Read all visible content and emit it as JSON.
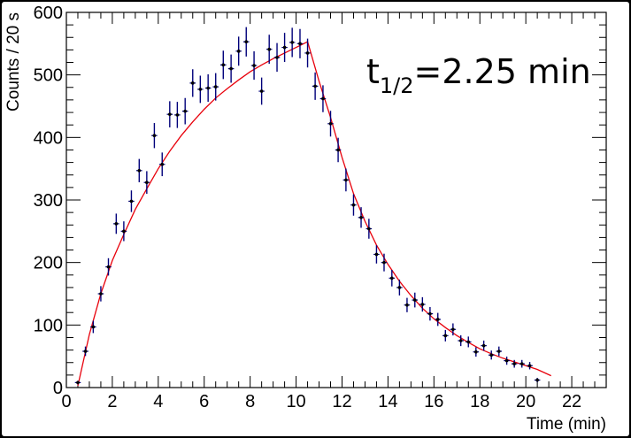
{
  "chart_data": {
    "type": "scatter",
    "title": "",
    "xlabel": "Time (min)",
    "ylabel": "Counts / 20 s",
    "xlim": [
      0,
      23.5
    ],
    "ylim": [
      0,
      600
    ],
    "x_ticks": [
      "0",
      "2",
      "4",
      "6",
      "8",
      "10",
      "12",
      "14",
      "16",
      "18",
      "20",
      "22"
    ],
    "y_ticks": [
      "0",
      "100",
      "200",
      "300",
      "400",
      "500",
      "600"
    ],
    "annotation": {
      "base": "t",
      "sub": "1/2",
      "rest": "=2.25 min"
    },
    "grid": false,
    "legend": "none",
    "colors": {
      "points": "#00007a",
      "fit": "#e8000b"
    },
    "series": [
      {
        "kind": "data-points-with-error-bars",
        "x": [
          0.5,
          0.83,
          1.17,
          1.5,
          1.83,
          2.17,
          2.5,
          2.83,
          3.17,
          3.5,
          3.83,
          4.17,
          4.5,
          4.83,
          5.17,
          5.5,
          5.83,
          6.17,
          6.5,
          6.83,
          7.17,
          7.5,
          7.83,
          8.17,
          8.5,
          8.83,
          9.17,
          9.5,
          9.83,
          10.17,
          10.5,
          10.83,
          11.17,
          11.5,
          11.83,
          12.17,
          12.5,
          12.83,
          13.17,
          13.5,
          13.83,
          14.17,
          14.5,
          14.83,
          15.17,
          15.5,
          15.83,
          16.17,
          16.5,
          16.83,
          17.17,
          17.5,
          17.83,
          18.17,
          18.5,
          18.83,
          19.17,
          19.5,
          19.83,
          20.17,
          20.5
        ],
        "y": [
          8,
          58,
          97,
          150,
          193,
          262,
          250,
          298,
          347,
          328,
          403,
          357,
          437,
          436,
          442,
          487,
          477,
          479,
          481,
          516,
          510,
          538,
          553,
          515,
          474,
          541,
          528,
          544,
          552,
          550,
          535,
          482,
          462,
          422,
          380,
          332,
          292,
          272,
          254,
          213,
          200,
          175,
          160,
          132,
          140,
          133,
          118,
          109,
          83,
          93,
          75,
          73,
          57,
          67,
          52,
          58,
          43,
          38,
          38,
          35,
          12
        ]
      },
      {
        "kind": "fit-curve",
        "x": [
          0.5,
          1,
          1.5,
          2,
          2.5,
          3,
          3.5,
          4,
          4.5,
          5,
          5.5,
          6,
          6.5,
          7,
          7.5,
          8,
          8.5,
          9,
          9.5,
          10,
          10.5,
          11,
          11.5,
          12,
          12.5,
          13,
          13.5,
          14,
          14.5,
          15,
          15.5,
          16,
          16.5,
          17,
          17.5,
          18,
          18.5,
          19,
          19.5,
          20,
          20.5,
          21.1
        ],
        "y": [
          3,
          85,
          150,
          203,
          245,
          285,
          318,
          350,
          378,
          403,
          425,
          445,
          463,
          478,
          492,
          505,
          516,
          526,
          535,
          544,
          553,
          490,
          432,
          368,
          310,
          266,
          228,
          197,
          170,
          147,
          127,
          110,
          96,
          83,
          72,
          62,
          54,
          47,
          41,
          35,
          29,
          19
        ]
      }
    ]
  }
}
